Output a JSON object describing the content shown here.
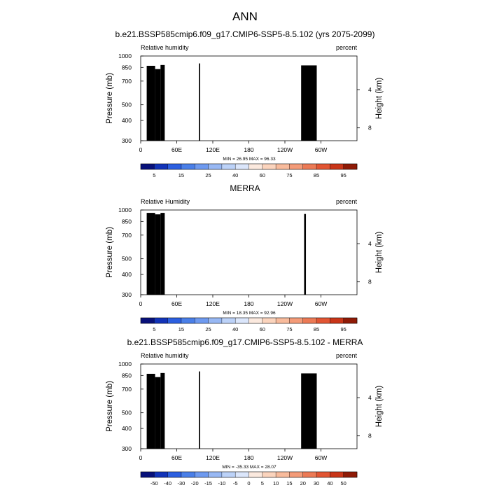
{
  "figure": {
    "title": "ANN"
  },
  "chart_data": [
    {
      "type": "heatmap",
      "title": "b.e21.BSSP585cmip6.f09_g17.CMIP6-SSP5-8.5.102 (yrs 2075-2099)",
      "left_label": "Relative humidity",
      "right_label": "percent",
      "xlabel": "",
      "ylabel": "Pressure (mb)",
      "y2label": "Height (km)",
      "x_ticks": [
        "0",
        "60E",
        "120E",
        "180",
        "120W",
        "60W"
      ],
      "x_tick_lon": [
        0,
        60,
        120,
        180,
        240,
        300
      ],
      "y_ticks": [
        300,
        400,
        500,
        700,
        850,
        1000
      ],
      "y2_ticks": [
        8,
        4
      ],
      "ylim": [
        1000,
        300
      ],
      "xlim": [
        0,
        360
      ],
      "stats": "MIN = 26.95   MAX = 96.33",
      "colorbar_ticks": [
        "5",
        "15",
        "25",
        "40",
        "60",
        "75",
        "85",
        "95"
      ],
      "colorbar_levels": [
        5,
        10,
        15,
        20,
        25,
        30,
        40,
        50,
        60,
        70,
        75,
        80,
        85,
        90,
        95
      ],
      "colorbar_colors": [
        "#08117a",
        "#1233b8",
        "#2c5fe0",
        "#4a7fe8",
        "#6e9af0",
        "#98b8f4",
        "#bcd2f8",
        "#dbe6fb",
        "#fbe9de",
        "#fbd4bd",
        "#f8bb9c",
        "#f49b78",
        "#ec7a55",
        "#e25533",
        "#c93518",
        "#8f1a06"
      ],
      "min": 26.95,
      "max": 96.33
    },
    {
      "type": "heatmap",
      "title": "MERRA",
      "left_label": "Relative Humidity",
      "right_label": "percent",
      "xlabel": "",
      "ylabel": "Pressure (mb)",
      "y2label": "Height (km)",
      "x_ticks": [
        "0",
        "60E",
        "120E",
        "180",
        "120W",
        "60W"
      ],
      "x_tick_lon": [
        0,
        60,
        120,
        180,
        240,
        300
      ],
      "y_ticks": [
        300,
        400,
        500,
        700,
        850,
        1000
      ],
      "y2_ticks": [
        8,
        4
      ],
      "ylim": [
        1000,
        300
      ],
      "xlim": [
        0,
        360
      ],
      "stats": "MIN = 18.35   MAX = 92.96",
      "colorbar_ticks": [
        "5",
        "15",
        "25",
        "40",
        "60",
        "75",
        "85",
        "95"
      ],
      "colorbar_levels": [
        5,
        10,
        15,
        20,
        25,
        30,
        40,
        50,
        60,
        70,
        75,
        80,
        85,
        90,
        95
      ],
      "colorbar_colors": [
        "#08117a",
        "#1233b8",
        "#2c5fe0",
        "#4a7fe8",
        "#6e9af0",
        "#98b8f4",
        "#bcd2f8",
        "#dbe6fb",
        "#fbe9de",
        "#fbd4bd",
        "#f8bb9c",
        "#f49b78",
        "#ec7a55",
        "#e25533",
        "#c93518",
        "#8f1a06"
      ],
      "min": 18.35,
      "max": 92.96
    },
    {
      "type": "heatmap",
      "title": "b.e21.BSSP585cmip6.f09_g17.CMIP6-SSP5-8.5.102 - MERRA",
      "left_label": "Relative humidity",
      "right_label": "percent",
      "xlabel": "",
      "ylabel": "Pressure (mb)",
      "y2label": "Height (km)",
      "x_ticks": [
        "0",
        "60E",
        "120E",
        "180",
        "120W",
        "60W"
      ],
      "x_tick_lon": [
        0,
        60,
        120,
        180,
        240,
        300
      ],
      "y_ticks": [
        300,
        400,
        500,
        700,
        850,
        1000
      ],
      "y2_ticks": [
        8,
        4
      ],
      "ylim": [
        1000,
        300
      ],
      "xlim": [
        0,
        360
      ],
      "stats": "MIN = -35.33   MAX = 28.07",
      "colorbar_ticks": [
        "-50",
        "-40",
        "-30",
        "-20",
        "-15",
        "-10",
        "-5",
        "0",
        "5",
        "10",
        "15",
        "20",
        "30",
        "40",
        "50"
      ],
      "colorbar_levels": [
        -50,
        -40,
        -30,
        -20,
        -15,
        -10,
        -5,
        0,
        5,
        10,
        15,
        20,
        30,
        40,
        50
      ],
      "colorbar_colors": [
        "#08117a",
        "#1233b8",
        "#2c5fe0",
        "#4a7fe8",
        "#6e9af0",
        "#98b8f4",
        "#bcd2f8",
        "#dbe6fb",
        "#fbe9de",
        "#fbd4bd",
        "#f8bb9c",
        "#f49b78",
        "#ec7a55",
        "#e25533",
        "#c93518",
        "#8f1a06"
      ],
      "min": -35.33,
      "max": 28.07
    }
  ]
}
